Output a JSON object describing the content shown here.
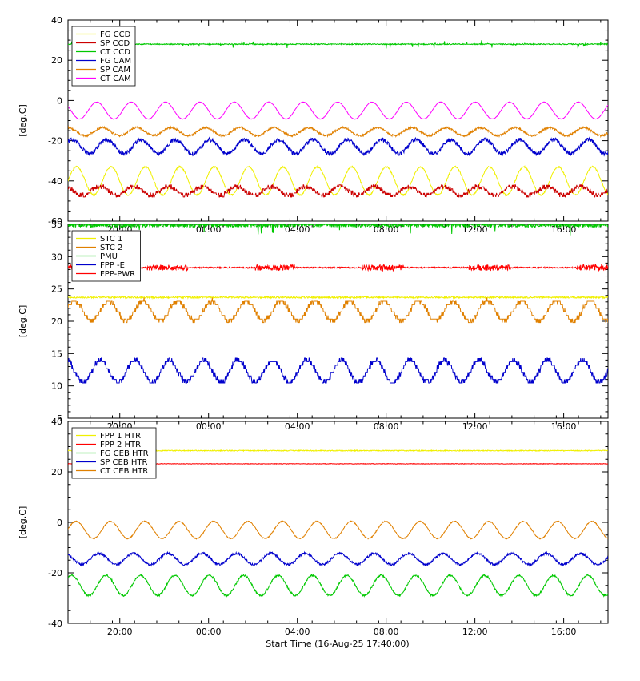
{
  "chart_data": {
    "type": "line",
    "layout_hint": "three vertically stacked time-series panels sharing one time axis, legends inset top-left, grid off",
    "x_axis": {
      "title": "Start Time (16-Aug-25 17:40:00)",
      "tick_labels": [
        "20:00",
        "00:00",
        "04:00",
        "08:00",
        "12:00",
        "16:00"
      ],
      "tick_hours_from_start": [
        2.333,
        6.333,
        10.333,
        14.333,
        18.333,
        22.333
      ],
      "range_hours": [
        0,
        24.33
      ],
      "minor_tick_hours": 1
    },
    "y_axis_label": "[deg.C]",
    "panels": [
      {
        "ylim": [
          -60,
          40
        ],
        "ytick_step": 20,
        "yminor_step": 5,
        "legend": [
          "FG CCD",
          "SP CCD",
          "CT CCD",
          "FG CAM",
          "SP CAM",
          "CT CAM"
        ],
        "series": [
          {
            "name": "FG CCD",
            "color": "#f0f000",
            "waveform": "sine",
            "mean": -40,
            "amplitude": 7,
            "period_hours": 1.55,
            "phase": 0.0,
            "noise": 0.35
          },
          {
            "name": "SP CCD",
            "color": "#cc0000",
            "waveform": "sine",
            "mean": -45,
            "amplitude": 2.2,
            "period_hours": 1.55,
            "phase": 2.1,
            "noise": 1.0,
            "quantize": 1.0
          },
          {
            "name": "CT CCD",
            "color": "#00c800",
            "waveform": "flat",
            "mean": 28,
            "noise": 0.25,
            "spikes": 1.0
          },
          {
            "name": "FG CAM",
            "color": "#0000cc",
            "waveform": "sine",
            "mean": -23,
            "amplitude": 3.5,
            "period_hours": 1.55,
            "phase": 0.8,
            "noise": 1.0
          },
          {
            "name": "SP CAM",
            "color": "#e08000",
            "waveform": "sine",
            "mean": -15.5,
            "amplitude": 2.0,
            "period_hours": 1.55,
            "phase": 1.6,
            "noise": 0.5
          },
          {
            "name": "CT CAM",
            "color": "#ff00ff",
            "waveform": "sine",
            "mean": -5,
            "amplitude": 4.2,
            "period_hours": 1.55,
            "phase": 2.6,
            "noise": 0.12
          }
        ]
      },
      {
        "ylim": [
          5,
          35
        ],
        "ytick_step": 5,
        "yminor_step": 1,
        "legend": [
          "STC 1",
          "STC 2",
          "PMU",
          "FPP -E",
          "FPP-PWR"
        ],
        "series": [
          {
            "name": "STC 1",
            "color": "#f0f000",
            "waveform": "flat",
            "mean": 23.7,
            "noise": 0.12
          },
          {
            "name": "STC 2",
            "color": "#e08000",
            "waveform": "sine",
            "mean": 21.6,
            "amplitude": 1.5,
            "period_hours": 1.55,
            "phase": 0.4,
            "noise": 0.3,
            "quantize": 0.55
          },
          {
            "name": "PMU",
            "color": "#00c800",
            "waveform": "flat",
            "mean": 34.9,
            "noise": 0.35,
            "spikes": 0.8
          },
          {
            "name": "FPP -E",
            "color": "#0000cc",
            "waveform": "sine",
            "mean": 12.3,
            "amplitude": 1.7,
            "period_hours": 1.55,
            "phase": 1.9,
            "noise": 0.35,
            "quantize": 0.55
          },
          {
            "name": "FPP-PWR",
            "color": "#ff0000",
            "waveform": "flat",
            "mean": 28.3,
            "noise": 0.1,
            "burst_noise": 0.35
          }
        ]
      },
      {
        "ylim": [
          -40,
          40
        ],
        "ytick_step": 20,
        "yminor_step": 5,
        "legend": [
          "FPP 1 HTR",
          "FPP 2 HTR",
          "FG CEB HTR",
          "SP CEB HTR",
          "CT CEB HTR"
        ],
        "series": [
          {
            "name": "FPP 1 HTR",
            "color": "#f0f000",
            "waveform": "flat",
            "mean": 28.4,
            "noise": 0.18
          },
          {
            "name": "FPP 2 HTR",
            "color": "#ff0000",
            "waveform": "flat",
            "mean": 23.2,
            "noise": 0.1
          },
          {
            "name": "FG CEB HTR",
            "color": "#00c800",
            "waveform": "sine",
            "mean": -25,
            "amplitude": 4.0,
            "period_hours": 1.55,
            "phase": 0.9,
            "noise": 0.35
          },
          {
            "name": "SP CEB HTR",
            "color": "#0000cc",
            "waveform": "sine",
            "mean": -14.5,
            "amplitude": 2.2,
            "period_hours": 1.55,
            "phase": 2.2,
            "noise": 0.45
          },
          {
            "name": "CT CEB HTR",
            "color": "#e08000",
            "waveform": "sine",
            "mean": -3,
            "amplitude": 3.4,
            "period_hours": 1.55,
            "phase": 0.1,
            "noise": 0.2
          }
        ]
      }
    ]
  }
}
